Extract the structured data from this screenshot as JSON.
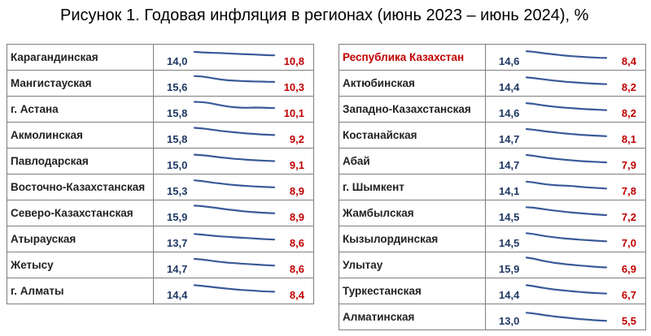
{
  "title": "Рисунок 1. Годовая инфляция в регионах (июнь 2023 – июнь 2024), %",
  "colors": {
    "start_value": "#1f3864",
    "end_value": "#c00000",
    "line": "#3a5a98",
    "highlight": "#c00000"
  },
  "chart_data": {
    "type": "table",
    "columns": [
      {
        "rows": [
          {
            "region": "Карагандинская",
            "start": "14,0",
            "end": "10,8",
            "trend": [
              14.0,
              13.6,
              13.3,
              13.1,
              12.9,
              12.6,
              12.3,
              12.0,
              11.8,
              11.6,
              11.3,
              11.0,
              10.8
            ]
          },
          {
            "region": "Мангистауская",
            "start": "15,6",
            "end": "10,3",
            "trend": [
              15.6,
              15.3,
              14.5,
              13.4,
              12.5,
              11.8,
              11.4,
              11.1,
              10.9,
              10.7,
              10.6,
              10.4,
              10.3
            ]
          },
          {
            "region": "г. Астана",
            "start": "15,8",
            "end": "10,1",
            "trend": [
              15.8,
              15.6,
              15.0,
              13.8,
              12.6,
              11.6,
              10.9,
              10.5,
              10.4,
              10.6,
              10.5,
              10.3,
              10.1
            ]
          },
          {
            "region": "Акмолинская",
            "start": "15,8",
            "end": "9,2",
            "trend": [
              15.8,
              15.4,
              14.6,
              13.8,
              13.0,
              12.3,
              11.7,
              11.1,
              10.6,
              10.2,
              9.8,
              9.5,
              9.2
            ]
          },
          {
            "region": "Павлодарская",
            "start": "15,0",
            "end": "9,1",
            "trend": [
              15.0,
              14.6,
              14.0,
              13.2,
              12.5,
              11.9,
              11.2,
              10.8,
              10.3,
              9.9,
              9.6,
              9.3,
              9.1
            ]
          },
          {
            "region": "Восточно-Казахстанская",
            "start": "15,3",
            "end": "8,9",
            "trend": [
              15.3,
              14.7,
              13.9,
              13.0,
              12.3,
              11.6,
              11.0,
              10.5,
              10.1,
              9.7,
              9.4,
              9.1,
              8.9
            ]
          },
          {
            "region": "Северо-Казахстанская",
            "start": "15,9",
            "end": "8,9",
            "trend": [
              15.9,
              15.5,
              14.8,
              14.0,
              13.2,
              12.4,
              11.7,
              11.0,
              10.4,
              9.9,
              9.5,
              9.2,
              8.9
            ]
          },
          {
            "region": "Атырауская",
            "start": "13,7",
            "end": "8,6",
            "trend": [
              13.7,
              13.2,
              12.6,
              12.0,
              11.5,
              11.1,
              10.7,
              10.3,
              10.0,
              9.6,
              9.2,
              8.9,
              8.6
            ]
          },
          {
            "region": "Жетысу",
            "start": "14,7",
            "end": "8,6",
            "trend": [
              14.7,
              14.2,
              13.4,
              12.6,
              11.9,
              11.3,
              10.8,
              10.4,
              10.0,
              9.6,
              9.2,
              8.9,
              8.6
            ]
          },
          {
            "region": "г. Алматы",
            "start": "14,4",
            "end": "8,4",
            "trend": [
              14.4,
              13.9,
              13.2,
              12.5,
              11.8,
              11.2,
              10.6,
              10.1,
              9.7,
              9.3,
              8.9,
              8.6,
              8.4
            ]
          }
        ]
      },
      {
        "rows": [
          {
            "region": "Республика Казахстан",
            "start": "14,6",
            "end": "8,4",
            "highlight": true,
            "trend": [
              14.6,
              14.1,
              13.3,
              12.5,
              11.8,
              11.1,
              10.5,
              10.0,
              9.6,
              9.2,
              8.9,
              8.6,
              8.4
            ]
          },
          {
            "region": "Актюбинская",
            "start": "14,4",
            "end": "8,2",
            "trend": [
              14.4,
              13.9,
              13.1,
              12.3,
              11.6,
              11.0,
              10.4,
              9.9,
              9.5,
              9.1,
              8.7,
              8.4,
              8.2
            ]
          },
          {
            "region": "Западно-Казахстанская",
            "start": "14,6",
            "end": "8,2",
            "trend": [
              14.6,
              14.0,
              13.1,
              12.2,
              11.5,
              10.9,
              10.4,
              9.9,
              9.5,
              9.1,
              8.8,
              8.5,
              8.2
            ]
          },
          {
            "region": "Костанайская",
            "start": "14,7",
            "end": "8,1",
            "trend": [
              14.7,
              14.1,
              13.3,
              12.5,
              11.8,
              11.1,
              10.5,
              10.0,
              9.5,
              9.1,
              8.7,
              8.4,
              8.1
            ]
          },
          {
            "region": "Абай",
            "start": "14,7",
            "end": "7,9",
            "trend": [
              14.7,
              14.0,
              13.1,
              12.2,
              11.4,
              10.8,
              10.2,
              9.7,
              9.2,
              8.8,
              8.5,
              8.2,
              7.9
            ]
          },
          {
            "region": "г. Шымкент",
            "start": "14,1",
            "end": "7,8",
            "trend": [
              14.1,
              13.4,
              12.5,
              11.6,
              11.0,
              10.6,
              10.4,
              10.0,
              9.4,
              8.9,
              8.5,
              8.1,
              7.8
            ]
          },
          {
            "region": "Жамбылская",
            "start": "14,5",
            "end": "7,2",
            "trend": [
              14.5,
              14.0,
              13.2,
              12.3,
              11.5,
              10.8,
              10.1,
              9.5,
              9.0,
              8.5,
              8.0,
              7.6,
              7.2
            ]
          },
          {
            "region": "Кызылординская",
            "start": "14,5",
            "end": "7,0",
            "trend": [
              14.5,
              13.7,
              12.6,
              11.6,
              10.8,
              10.1,
              9.5,
              9.0,
              8.5,
              8.1,
              7.7,
              7.3,
              7.0
            ]
          },
          {
            "region": "Улытау",
            "start": "15,9",
            "end": "6,9",
            "trend": [
              15.9,
              15.0,
              13.6,
              12.3,
              11.3,
              10.5,
              9.8,
              9.2,
              8.6,
              8.1,
              7.6,
              7.2,
              6.9
            ]
          },
          {
            "region": "Туркестанская",
            "start": "14,4",
            "end": "6,7",
            "trend": [
              14.4,
              13.6,
              12.5,
              11.5,
              10.6,
              9.9,
              9.3,
              8.7,
              8.2,
              7.7,
              7.3,
              7.0,
              6.7
            ]
          },
          {
            "region": "Алматинская",
            "start": "13,0",
            "end": "5,5",
            "trend": [
              13.0,
              12.3,
              11.4,
              10.5,
              9.7,
              9.0,
              8.4,
              7.8,
              7.2,
              6.7,
              6.2,
              5.8,
              5.5
            ]
          }
        ]
      }
    ]
  }
}
